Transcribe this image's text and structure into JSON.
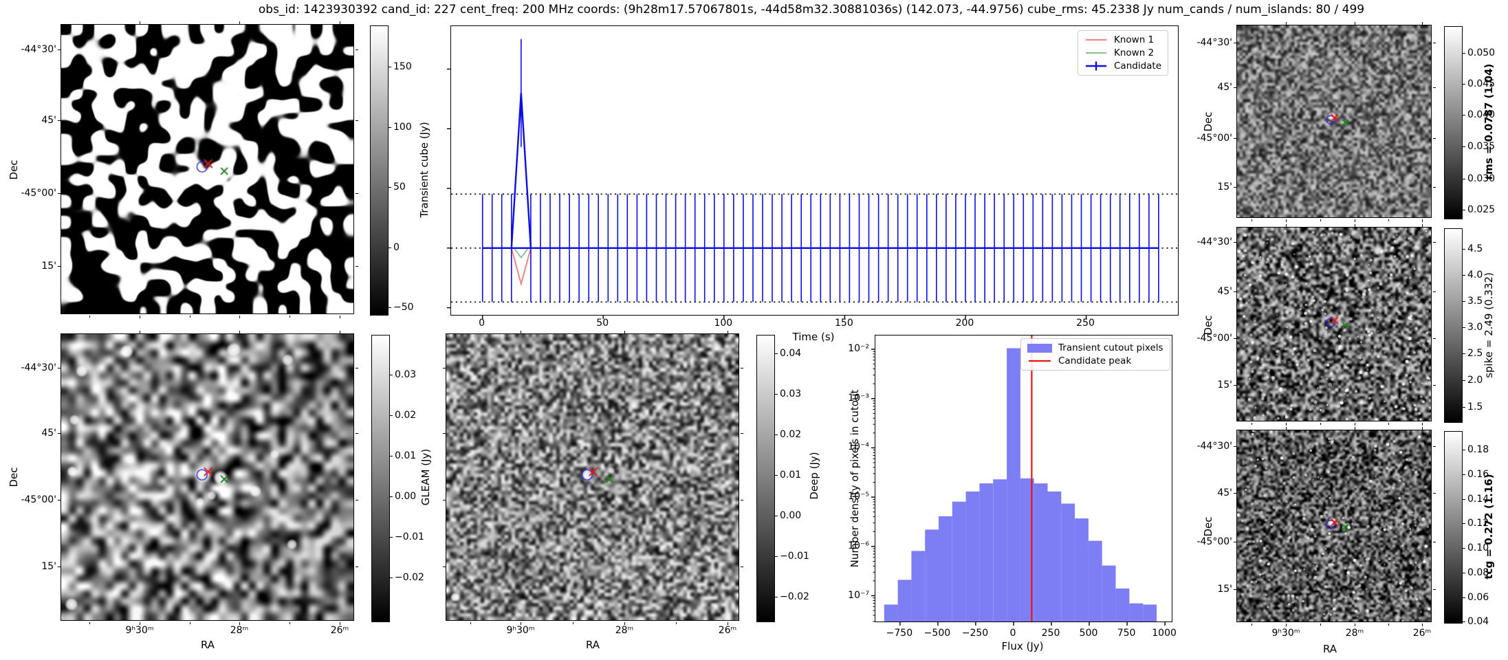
{
  "title": "obs_id: 1423930392 cand_id: 227 cent_freq: 200 MHz coords: (9h28m17.57067801s, -44d58m32.30881036s) (142.073, -44.9756) cube_rms: 45.2338 Jy num_cands / num_islands: 80 / 499",
  "colors": {
    "candidate": "#0b0bee",
    "known1": "#f08080",
    "known2": "#8bc48b",
    "hist_bar": "#7d7df4",
    "peak_line": "#ee1111",
    "red_x": "#e8150d",
    "green_x": "#1d801d",
    "circle": "#2222dd",
    "axis": "#000000"
  },
  "labels": {
    "dec": "Dec",
    "ra": "RA",
    "time": "Time (s)",
    "flux": "Flux (Jy)",
    "hist_y": "Number density of pixels in cutout",
    "cb_tcube": "Transient cube (Jy)",
    "cb_gleam": "GLEAM (Jy)",
    "cb_deep": "Deep (Jy)",
    "cb_rms": "rms = 0.0787 (1.04)",
    "cb_spike": "spike = 2.49 (0.332)",
    "cb_tcg": "tcg = 0.272 (1.16)",
    "lg_known1": "Known 1",
    "lg_known2": "Known 2",
    "lg_candidate": "Candidate",
    "lg_hist_pixels": "Transient cutout pixels",
    "lg_hist_peak": "Candidate peak"
  },
  "panels": {
    "dec_tick_labels": [
      "-44°30'",
      "45'",
      "-45°00'",
      "15'"
    ],
    "ra_tick_labels": [
      "9ʰ30ᵐ",
      "28ᵐ",
      "26ᵐ"
    ]
  },
  "markers": {
    "circle": [
      0.482,
      0.492
    ],
    "red_x": [
      0.503,
      0.481
    ],
    "green_x": [
      0.558,
      0.507
    ]
  },
  "chart_data": [
    {
      "id": "lightcurve",
      "type": "line",
      "xlabel": "Time (s)",
      "xticks": [
        0,
        50,
        100,
        150,
        200,
        250
      ],
      "xtick_labels": [
        "0",
        "50",
        "100",
        "150",
        "200",
        "250"
      ],
      "xlim": [
        -13,
        288
      ],
      "ylim": [
        -56,
        186
      ],
      "ytick_values": [
        150,
        100,
        50,
        0,
        -50
      ],
      "dotted_lines": [
        45.2338,
        0,
        -45.2338
      ],
      "legend": [
        "Known 1",
        "Known 2",
        "Candidate"
      ],
      "legend_position": "upper right",
      "series": [
        {
          "name": "Known 1",
          "color_key": "known1",
          "baseline": 0,
          "dip": {
            "t_start": 12,
            "t_min": 16,
            "t_end": 20,
            "min": -30
          }
        },
        {
          "name": "Known 2",
          "color_key": "known2",
          "baseline": 0,
          "dip": {
            "t_start": 13,
            "t_min": 16,
            "t_end": 19,
            "min": -8
          }
        },
        {
          "name": "Candidate",
          "color_key": "candidate",
          "samples": {
            "t_start": 0,
            "t_end": 280,
            "dt": 4,
            "value": 0,
            "yerr": 45.2338
          },
          "spike": {
            "t_start": 12,
            "t_peak": 16,
            "t_end": 20,
            "peak": 130,
            "yerr": 45.2338
          }
        }
      ]
    },
    {
      "id": "flux-histogram",
      "type": "bar",
      "xlabel": "Flux (Jy)",
      "ylabel": "Number density of pixels in cutout",
      "yscale": "log",
      "xlim": [
        -913,
        1045
      ],
      "ylim": [
        3e-08,
        0.019
      ],
      "xticks": [
        -750,
        -500,
        -250,
        0,
        250,
        500,
        750,
        1000
      ],
      "xtick_labels": [
        "−750",
        "−500",
        "−250",
        "0",
        "250",
        "500",
        "750",
        "1000"
      ],
      "ytick_labels": [
        "10⁻²",
        "10⁻³",
        "10⁻⁴",
        "10⁻⁵",
        "10⁻⁶",
        "10⁻⁷"
      ],
      "bin_start": -855,
      "bin_width": 90,
      "values": [
        6.6e-08,
        2.1e-07,
        8.1e-07,
        2.2e-06,
        4.1e-06,
        8.1e-06,
        1.3e-05,
        1.9e-05,
        2.3e-05,
        0.0105,
        2.4e-05,
        1.9e-05,
        1.3e-05,
        7.4e-06,
        3.7e-06,
        1.3e-06,
        4.1e-07,
        1.4e-07,
        7e-08,
        6.6e-08
      ],
      "candidate_peak": 120,
      "legend": [
        "Transient cutout pixels",
        "Candidate peak"
      ]
    },
    {
      "id": "transient-cube-map",
      "type": "heatmap",
      "xlabel": "RA",
      "ylabel": "Dec",
      "colorbar": {
        "label": "Transient cube (Jy)",
        "range": [
          -55,
          184
        ],
        "ticks": [
          150,
          100,
          50,
          0,
          -50
        ],
        "tick_labels": [
          "150",
          "100",
          "50",
          "0",
          "−50"
        ]
      }
    },
    {
      "id": "gleam-map",
      "type": "heatmap",
      "xlabel": "RA",
      "ylabel": "Dec",
      "colorbar": {
        "label": "GLEAM (Jy)",
        "ticks": [
          0.03,
          0.02,
          0.01,
          0.0,
          -0.01,
          -0.02
        ],
        "tick_labels": [
          "0.03",
          "0.02",
          "0.01",
          "0.00",
          "−0.01",
          "−0.02"
        ]
      }
    },
    {
      "id": "deep-map",
      "type": "heatmap",
      "xlabel": "RA",
      "ylabel": "Dec",
      "colorbar": {
        "label": "Deep (Jy)",
        "ticks": [
          0.04,
          0.03,
          0.02,
          0.01,
          0.0,
          -0.01,
          -0.02
        ],
        "tick_labels": [
          "0.04",
          "0.03",
          "0.02",
          "0.01",
          "0.00",
          "−0.01",
          "−0.02"
        ]
      }
    },
    {
      "id": "rms-map",
      "type": "heatmap",
      "ylabel": "Dec",
      "colorbar": {
        "label": "rms = 0.0787 (1.04)",
        "bold": true,
        "ticks": [
          0.05,
          0.045,
          0.04,
          0.035,
          0.03,
          0.025
        ],
        "tick_labels": [
          "0.050",
          "0.045",
          "0.040",
          "0.035",
          "0.030",
          "0.025"
        ]
      }
    },
    {
      "id": "spike-map",
      "type": "heatmap",
      "ylabel": "Dec",
      "colorbar": {
        "label": "spike = 2.49 (0.332)",
        "bold": false,
        "ticks": [
          4.5,
          4.0,
          3.5,
          3.0,
          2.5,
          2.0,
          1.5
        ],
        "tick_labels": [
          "4.5",
          "4.0",
          "3.5",
          "3.0",
          "2.5",
          "2.0",
          "1.5"
        ]
      }
    },
    {
      "id": "tcg-map",
      "type": "heatmap",
      "xlabel": "RA",
      "ylabel": "Dec",
      "colorbar": {
        "label": "tcg = 0.272 (1.16)",
        "bold": true,
        "ticks": [
          0.18,
          0.16,
          0.14,
          0.12,
          0.1,
          0.08,
          0.06,
          0.04
        ],
        "tick_labels": [
          "0.18",
          "0.16",
          "0.14",
          "0.12",
          "0.10",
          "0.08",
          "0.06",
          "0.04"
        ]
      }
    }
  ]
}
